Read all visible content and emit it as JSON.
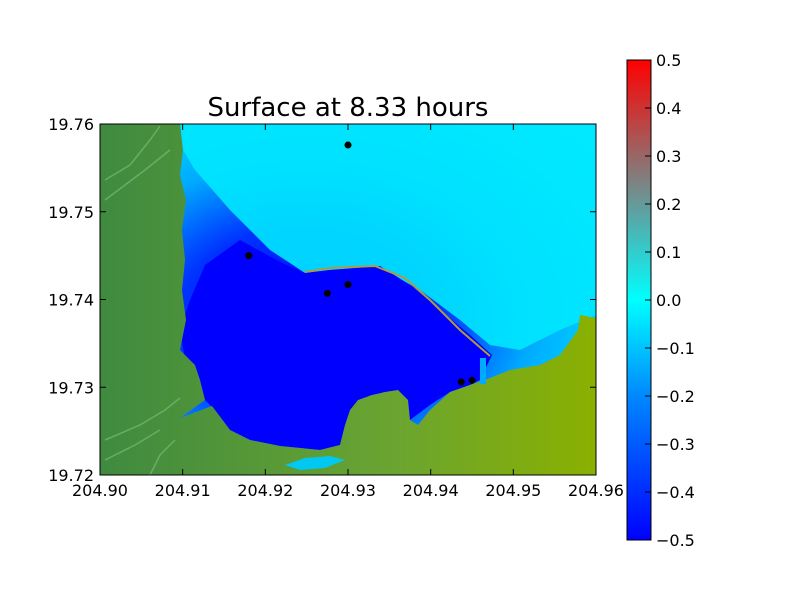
{
  "chart_data": [
    {
      "type": "heatmap",
      "title": "Surface at 8.33 hours",
      "xlim": [
        204.9,
        204.96
      ],
      "ylim": [
        19.72,
        19.76
      ],
      "x_ticks": [
        "204.90",
        "204.91",
        "204.92",
        "204.93",
        "204.94",
        "204.95",
        "204.96"
      ],
      "y_ticks": [
        "19.72",
        "19.73",
        "19.74",
        "19.75",
        "19.76"
      ],
      "grid": false,
      "points": [
        {
          "x": 204.93,
          "y": 19.7576
        },
        {
          "x": 204.918,
          "y": 19.745
        },
        {
          "x": 204.9275,
          "y": 19.7407
        },
        {
          "x": 204.93,
          "y": 19.7417
        },
        {
          "x": 204.9437,
          "y": 19.7306
        },
        {
          "x": 204.945,
          "y": 19.7308
        }
      ],
      "colors": {
        "land": "#8ab000",
        "land_highland": "#5a9a3c",
        "deep_negative": "#0000ff",
        "zero_surface": "#00eaff",
        "shelf": "#00c8f0",
        "points": "#000000"
      },
      "colorbar": {
        "vmin": -0.5,
        "vmax": 0.5,
        "ticks": [
          "0.5",
          "0.4",
          "0.3",
          "0.2",
          "0.1",
          "0.0",
          "−0.1",
          "−0.2",
          "−0.3",
          "−0.4",
          "−0.5"
        ],
        "gradient": [
          "#0000ff",
          "#0088ff",
          "#00ffff",
          "#808080",
          "#ff0000"
        ]
      }
    }
  ]
}
